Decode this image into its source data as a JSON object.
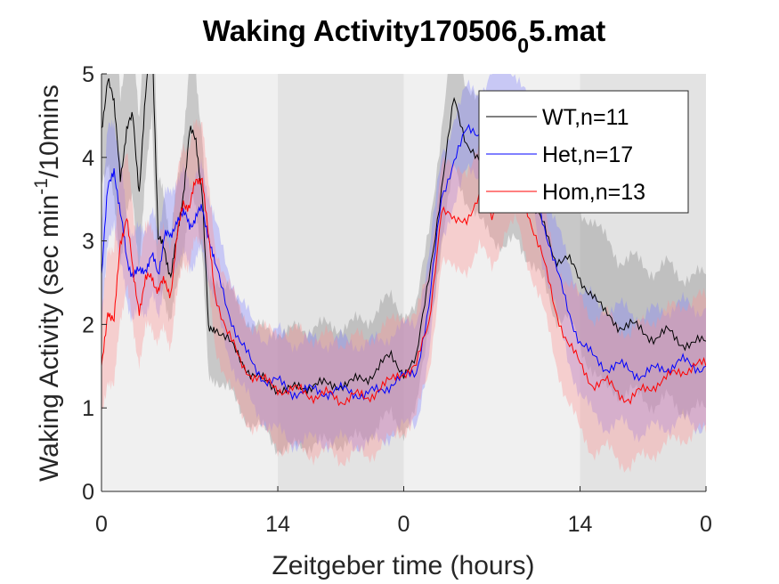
{
  "chart_data": {
    "type": "line",
    "title_main": "Waking Activity170506",
    "title_sub": "0",
    "title_end": "5.mat",
    "xlabel": "Zeitgeber time (hours)",
    "ylabel_main": "Waking Activity (sec min",
    "ylabel_sup": "-1",
    "ylabel_end": "/10mins",
    "xlim": [
      0,
      48
    ],
    "ylim": [
      0,
      5
    ],
    "yticks": [
      0,
      1,
      2,
      3,
      4,
      5
    ],
    "xticks": [
      {
        "x": 0,
        "label": "0"
      },
      {
        "x": 14,
        "label": "14"
      },
      {
        "x": 24,
        "label": "0"
      },
      {
        "x": 38,
        "label": "14"
      },
      {
        "x": 48,
        "label": "0"
      }
    ],
    "background_bands": [
      {
        "start": 0,
        "end": 14,
        "phase": "day",
        "color": "#f0f0f0"
      },
      {
        "start": 14,
        "end": 24,
        "phase": "night",
        "color": "#e3e3e3"
      },
      {
        "start": 24,
        "end": 38,
        "phase": "day",
        "color": "#f0f0f0"
      },
      {
        "start": 38,
        "end": 48,
        "phase": "night",
        "color": "#e3e3e3"
      }
    ],
    "legend_position": "top-right",
    "series": [
      {
        "name": "WT,n=11",
        "color": "#000000",
        "shade": "#7f7f7f",
        "x": [
          0,
          0.5,
          1,
          1.5,
          2,
          2.5,
          3,
          3.5,
          4,
          4.5,
          5,
          5.5,
          6,
          6.5,
          7,
          7.5,
          8,
          8.5,
          9,
          10,
          11,
          12,
          13,
          14,
          15,
          16,
          17,
          18,
          19,
          20,
          21,
          22,
          23,
          24,
          25,
          26,
          27,
          28,
          29,
          30,
          31,
          32,
          33,
          34,
          35,
          36,
          37,
          38,
          39,
          40,
          41,
          42,
          43,
          44,
          45,
          46,
          47,
          48
        ],
        "values": [
          4.3,
          5.0,
          4.6,
          3.8,
          4.3,
          4.5,
          3.6,
          4.7,
          5.6,
          3.0,
          2.9,
          2.6,
          3.0,
          3.6,
          4.3,
          4.2,
          3.6,
          1.9,
          2.0,
          1.8,
          1.6,
          1.4,
          1.3,
          1.25,
          1.2,
          1.25,
          1.3,
          1.25,
          1.3,
          1.3,
          1.35,
          1.5,
          1.6,
          1.45,
          1.55,
          2.6,
          3.6,
          4.7,
          4.2,
          3.9,
          3.8,
          3.6,
          3.7,
          3.5,
          3.2,
          2.8,
          2.8,
          2.5,
          2.4,
          2.1,
          2.0,
          2.0,
          1.9,
          1.85,
          1.9,
          1.8,
          1.75,
          1.8
        ],
        "band": [
          0.6,
          1.0,
          1.2,
          1.0,
          1.0,
          1.0,
          0.9,
          1.0,
          1.0,
          0.7,
          0.6,
          0.5,
          0.6,
          0.7,
          0.8,
          0.8,
          0.7,
          0.6,
          0.6,
          0.6,
          0.6,
          0.6,
          0.6,
          0.7,
          0.7,
          0.7,
          0.7,
          0.7,
          0.7,
          0.7,
          0.7,
          0.7,
          0.7,
          0.7,
          0.6,
          0.6,
          0.7,
          0.8,
          0.7,
          0.7,
          0.7,
          0.7,
          0.7,
          0.7,
          0.7,
          0.7,
          0.7,
          0.8,
          0.9,
          0.9,
          0.8,
          0.8,
          0.8,
          0.8,
          0.8,
          0.8,
          0.8,
          0.8
        ]
      },
      {
        "name": "Het,n=17",
        "color": "#0000ff",
        "shade": "#7f7fff",
        "x": [
          0,
          0.5,
          1,
          1.5,
          2,
          2.5,
          3,
          3.5,
          4,
          4.5,
          5,
          5.5,
          6,
          6.5,
          7,
          7.5,
          8,
          8.5,
          9,
          10,
          11,
          12,
          13,
          14,
          15,
          16,
          17,
          18,
          19,
          20,
          21,
          22,
          23,
          24,
          25,
          26,
          27,
          28,
          29,
          30,
          31,
          32,
          33,
          34,
          35,
          36,
          37,
          38,
          39,
          40,
          41,
          42,
          43,
          44,
          45,
          46,
          47,
          48
        ],
        "values": [
          2.6,
          3.6,
          3.9,
          3.3,
          2.8,
          2.6,
          2.6,
          2.7,
          2.8,
          2.6,
          3.1,
          3.0,
          3.3,
          3.3,
          3.2,
          3.3,
          3.35,
          3.1,
          2.7,
          2.2,
          1.8,
          1.5,
          1.35,
          1.3,
          1.2,
          1.2,
          1.2,
          1.2,
          1.2,
          1.2,
          1.15,
          1.2,
          1.3,
          1.35,
          1.45,
          2.2,
          3.5,
          4.0,
          4.3,
          4.3,
          4.5,
          4.7,
          4.5,
          4.1,
          3.3,
          2.7,
          2.2,
          1.8,
          1.6,
          1.5,
          1.5,
          1.45,
          1.4,
          1.45,
          1.5,
          1.55,
          1.5,
          1.5
        ],
        "band": [
          0.6,
          0.7,
          0.6,
          0.6,
          0.5,
          0.5,
          0.5,
          0.5,
          0.5,
          0.5,
          0.5,
          0.5,
          0.5,
          0.5,
          0.5,
          0.5,
          0.5,
          0.5,
          0.5,
          0.5,
          0.5,
          0.5,
          0.5,
          0.6,
          0.6,
          0.6,
          0.6,
          0.6,
          0.6,
          0.6,
          0.6,
          0.6,
          0.6,
          0.6,
          0.6,
          0.6,
          0.5,
          0.5,
          0.5,
          0.5,
          0.5,
          0.5,
          0.5,
          0.5,
          0.5,
          0.5,
          0.6,
          0.6,
          0.7,
          0.7,
          0.7,
          0.7,
          0.7,
          0.7,
          0.7,
          0.7,
          0.7,
          0.7
        ]
      },
      {
        "name": "Hom,n=13",
        "color": "#ff0000",
        "shade": "#ff9090",
        "x": [
          0,
          0.5,
          1,
          1.5,
          2,
          2.5,
          3,
          3.5,
          4,
          4.5,
          5,
          5.5,
          6,
          6.5,
          7,
          7.5,
          8,
          8.5,
          9,
          10,
          11,
          12,
          13,
          14,
          15,
          16,
          17,
          18,
          19,
          20,
          21,
          22,
          23,
          24,
          25,
          26,
          27,
          28,
          29,
          30,
          31,
          32,
          33,
          34,
          35,
          36,
          37,
          38,
          39,
          40,
          41,
          42,
          43,
          44,
          45,
          46,
          47,
          48
        ],
        "values": [
          1.45,
          2.2,
          2.0,
          3.0,
          3.3,
          2.6,
          2.2,
          2.5,
          2.6,
          2.4,
          2.5,
          2.4,
          3.0,
          3.5,
          3.4,
          3.7,
          3.8,
          3.0,
          2.4,
          1.9,
          1.55,
          1.4,
          1.3,
          1.25,
          1.2,
          1.2,
          1.15,
          1.15,
          1.1,
          1.15,
          1.1,
          1.25,
          1.3,
          1.45,
          1.5,
          2.0,
          3.4,
          3.2,
          3.3,
          3.5,
          3.3,
          3.7,
          3.8,
          3.3,
          2.8,
          2.2,
          1.8,
          1.5,
          1.3,
          1.3,
          1.2,
          1.1,
          1.2,
          1.3,
          1.35,
          1.45,
          1.5,
          1.5
        ],
        "band": [
          0.6,
          0.8,
          0.8,
          0.9,
          0.8,
          0.7,
          0.6,
          0.6,
          0.6,
          0.6,
          0.6,
          0.6,
          0.7,
          0.7,
          0.7,
          0.7,
          0.7,
          0.6,
          0.6,
          0.6,
          0.6,
          0.6,
          0.6,
          0.7,
          0.7,
          0.7,
          0.7,
          0.7,
          0.7,
          0.7,
          0.7,
          0.7,
          0.7,
          0.7,
          0.6,
          0.6,
          0.6,
          0.6,
          0.6,
          0.6,
          0.6,
          0.6,
          0.6,
          0.6,
          0.6,
          0.6,
          0.7,
          0.8,
          0.8,
          0.8,
          0.8,
          0.8,
          0.8,
          0.8,
          0.8,
          0.8,
          0.8,
          0.8
        ]
      }
    ]
  }
}
